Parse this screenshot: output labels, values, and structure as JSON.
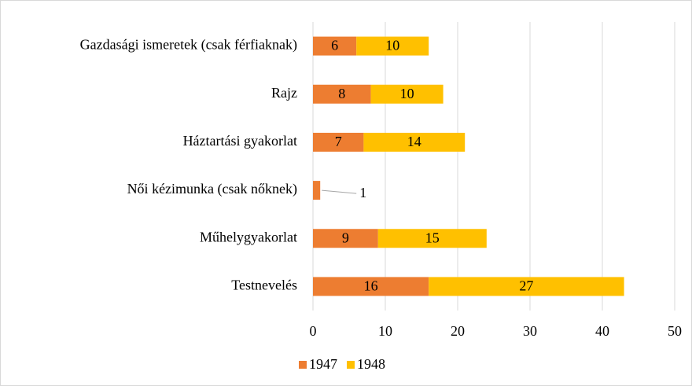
{
  "chart_data": {
    "type": "stacked-barh",
    "categories": [
      "Gazdasági ismeretek (csak férfiaknak)",
      "Rajz",
      "Háztartási gyakorlat",
      "Női kézimunka (csak nőknek)",
      "Műhelygyakorlat",
      "Testnevelés"
    ],
    "series": [
      {
        "name": "1947",
        "color": "#ed7d31",
        "values": [
          6,
          8,
          7,
          1,
          9,
          16
        ]
      },
      {
        "name": "1948",
        "color": "#ffc000",
        "values": [
          10,
          10,
          14,
          null,
          15,
          27
        ]
      }
    ],
    "xlim": [
      0,
      50
    ],
    "xticks": [
      0,
      10,
      20,
      30,
      40,
      50
    ],
    "grid": true,
    "legend": "bottom"
  }
}
